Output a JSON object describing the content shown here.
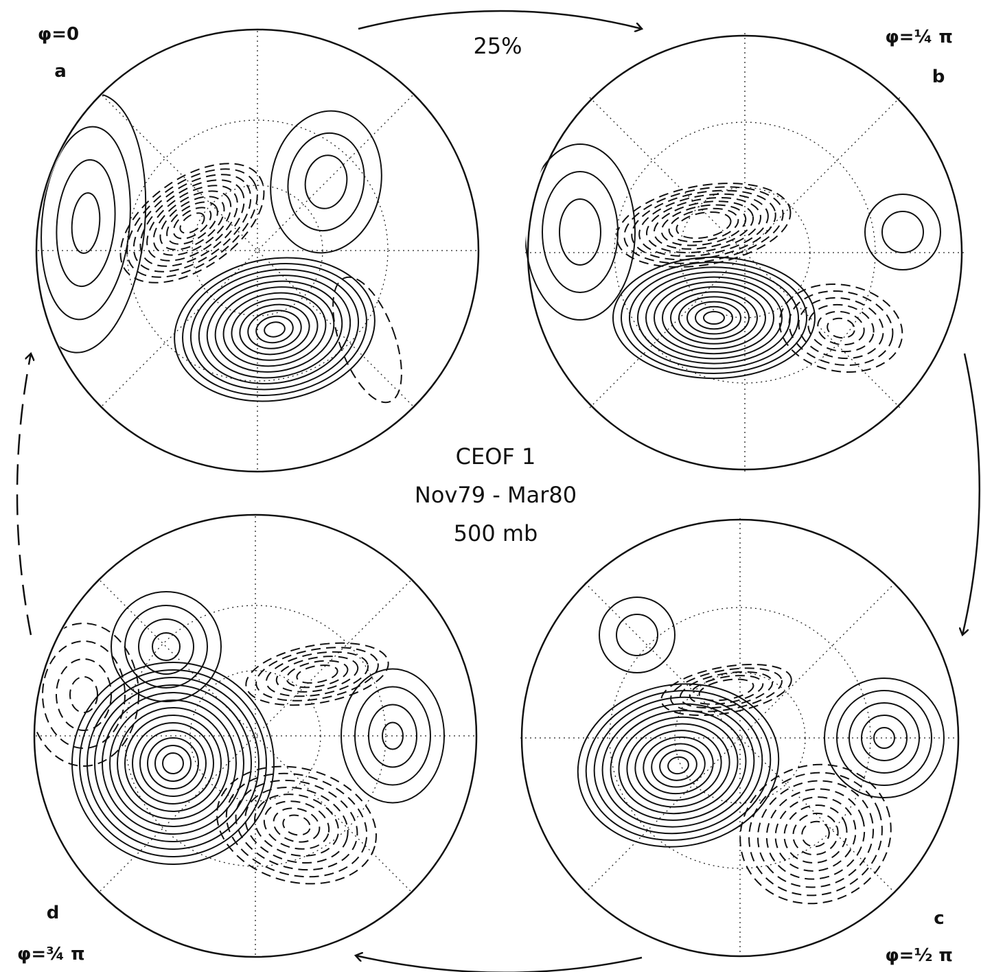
{
  "percent": "25%",
  "title": {
    "line1": "CEOF 1",
    "line2": "Nov79 - Mar80",
    "line3": "500 mb"
  },
  "panels": [
    {
      "label": "a",
      "phase": "φ=0"
    },
    {
      "label": "b",
      "phase": "φ=¼ π"
    },
    {
      "label": "c",
      "phase": "φ=½ π"
    },
    {
      "label": "d",
      "phase": "φ=¾ π"
    }
  ]
}
